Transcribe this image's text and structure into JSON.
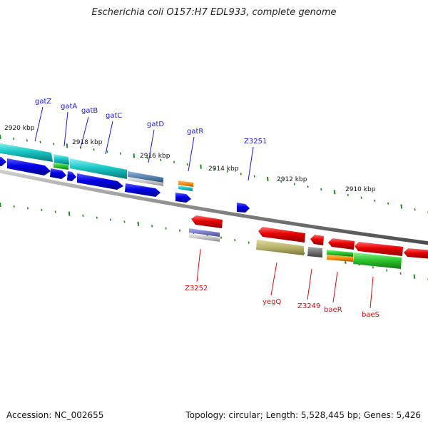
{
  "title": "Escherichia coli O157:H7 EDL933, complete genome",
  "footer": {
    "accession": "Accession: NC_002655",
    "summary": "Topology: circular; Length: 5,528,445 bp; Genes: 5,426"
  },
  "ticks": [
    {
      "label": "2920 kbp"
    },
    {
      "label": "2918 kbp"
    },
    {
      "label": "2916 kbp"
    },
    {
      "label": "2914 kbp"
    },
    {
      "label": "2912 kbp"
    },
    {
      "label": "2910 kbp"
    }
  ],
  "gene_labels": {
    "top": [
      "gatZ",
      "gatA",
      "gatB",
      "gatC",
      "gatD",
      "gatR",
      "Z3251"
    ],
    "bottom": [
      "Z3252",
      "yegQ",
      "Z3249",
      "baeR",
      "baeS"
    ]
  },
  "colors": {
    "cds_forward": "#0000e6",
    "cds_reverse": "#e60000",
    "cyan": "#19c8c8",
    "green": "#2ec82e",
    "orange": "#f59010",
    "steel": "#5b86b0",
    "olive": "#b9b36a",
    "gray": "#707070",
    "lavender": "#7a7ad0",
    "tick": "#1a8a1a",
    "backbone": "#8a8a8a"
  }
}
